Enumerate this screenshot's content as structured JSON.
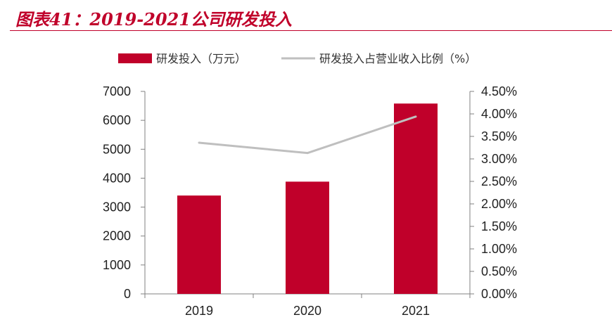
{
  "header": {
    "title": "图表41：2019-2021公司研发投入"
  },
  "colors": {
    "bar": "#c0002a",
    "line": "#bfbfbf",
    "axis": "#808080",
    "accent": "#c0002a"
  },
  "chart_data": {
    "type": "bar",
    "categories": [
      "2019",
      "2020",
      "2021"
    ],
    "series": [
      {
        "name": "研发投入（万元）",
        "type": "bar",
        "axis": "left",
        "values": [
          3400,
          3880,
          6580
        ]
      },
      {
        "name": "研发投入占营业收入比例（%）",
        "type": "line",
        "axis": "right",
        "values": [
          0.0336,
          0.0313,
          0.0394
        ]
      }
    ],
    "ylim_left": [
      0,
      7000
    ],
    "yticks_left": [
      "0",
      "1000",
      "2000",
      "3000",
      "4000",
      "5000",
      "6000",
      "7000"
    ],
    "ylim_right": [
      0,
      0.045
    ],
    "yticks_right": [
      "0.00%",
      "0.50%",
      "1.00%",
      "1.50%",
      "2.00%",
      "2.50%",
      "3.00%",
      "3.50%",
      "4.00%",
      "4.50%"
    ],
    "grid": false,
    "legend": "top-center"
  }
}
